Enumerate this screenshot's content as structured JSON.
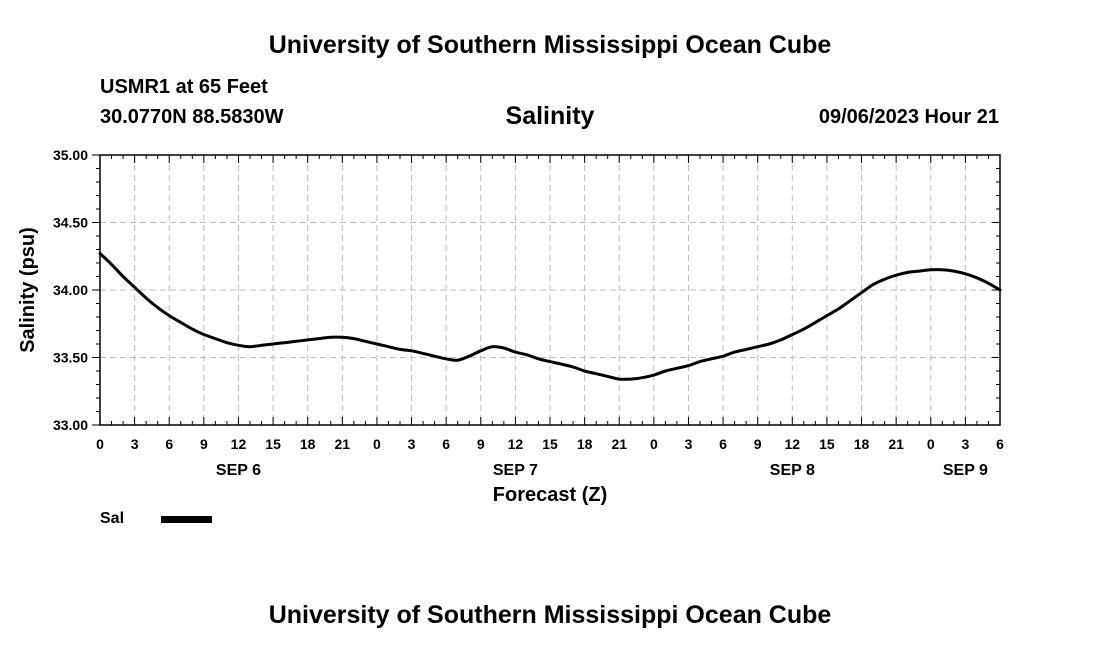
{
  "header": {
    "title": "University of Southern Mississippi Ocean Cube",
    "station": "USMR1 at 65 Feet",
    "coordinates": "30.0770N  88.5830W",
    "variable": "Salinity",
    "datetime": "09/06/2023 Hour 21"
  },
  "footer": {
    "title": "University of Southern Mississippi Ocean Cube"
  },
  "legend": {
    "label": "Sal",
    "color": "#000000"
  },
  "chart_data": {
    "type": "line",
    "title": "Salinity",
    "xlabel": "Forecast (Z)",
    "ylabel": "Salinity (psu)",
    "xlim": [
      0,
      78
    ],
    "ylim": [
      33.0,
      35.0
    ],
    "grid": true,
    "x_tick_labels": [
      "0",
      "3",
      "6",
      "9",
      "12",
      "15",
      "18",
      "21",
      "0",
      "3",
      "6",
      "9",
      "12",
      "15",
      "18",
      "21",
      "0",
      "3",
      "6",
      "9",
      "12",
      "15",
      "18",
      "21",
      "0",
      "3",
      "6"
    ],
    "day_labels": [
      {
        "label": "SEP 6",
        "hour": 12
      },
      {
        "label": "SEP 7",
        "hour": 36
      },
      {
        "label": "SEP 8",
        "hour": 60
      },
      {
        "label": "SEP 9",
        "hour": 75
      }
    ],
    "y_ticks": [
      33.0,
      33.5,
      34.0,
      34.5,
      35.0
    ],
    "y_tick_labels": [
      "33.00",
      "33.50",
      "34.00",
      "34.50",
      "35.00"
    ],
    "series": [
      {
        "name": "Sal",
        "color": "#000000",
        "x": [
          0,
          1,
          2,
          3,
          4,
          5,
          6,
          7,
          8,
          9,
          10,
          11,
          12,
          13,
          14,
          15,
          16,
          17,
          18,
          19,
          20,
          21,
          22,
          23,
          24,
          25,
          26,
          27,
          28,
          29,
          30,
          31,
          32,
          33,
          34,
          35,
          36,
          37,
          38,
          39,
          40,
          41,
          42,
          43,
          44,
          45,
          46,
          47,
          48,
          49,
          50,
          51,
          52,
          53,
          54,
          55,
          56,
          57,
          58,
          59,
          60,
          61,
          62,
          63,
          64,
          65,
          66,
          67,
          68,
          69,
          70,
          71,
          72,
          73,
          74,
          75,
          76,
          77,
          78
        ],
        "values": [
          34.27,
          34.19,
          34.1,
          34.02,
          33.94,
          33.87,
          33.81,
          33.76,
          33.71,
          33.67,
          33.64,
          33.61,
          33.59,
          33.58,
          33.59,
          33.6,
          33.61,
          33.62,
          33.63,
          33.64,
          33.65,
          33.65,
          33.64,
          33.62,
          33.6,
          33.58,
          33.56,
          33.55,
          33.53,
          33.51,
          33.49,
          33.48,
          33.51,
          33.55,
          33.58,
          33.57,
          33.54,
          33.52,
          33.49,
          33.47,
          33.45,
          33.43,
          33.4,
          33.38,
          33.36,
          33.34,
          33.34,
          33.35,
          33.37,
          33.4,
          33.42,
          33.44,
          33.47,
          33.49,
          33.51,
          33.54,
          33.56,
          33.58,
          33.6,
          33.63,
          33.67,
          33.71,
          33.76,
          33.81,
          33.86,
          33.92,
          33.98,
          34.04,
          34.08,
          34.11,
          34.13,
          34.14,
          34.15,
          34.15,
          34.14,
          34.12,
          34.09,
          34.05,
          34.0
        ]
      }
    ]
  }
}
